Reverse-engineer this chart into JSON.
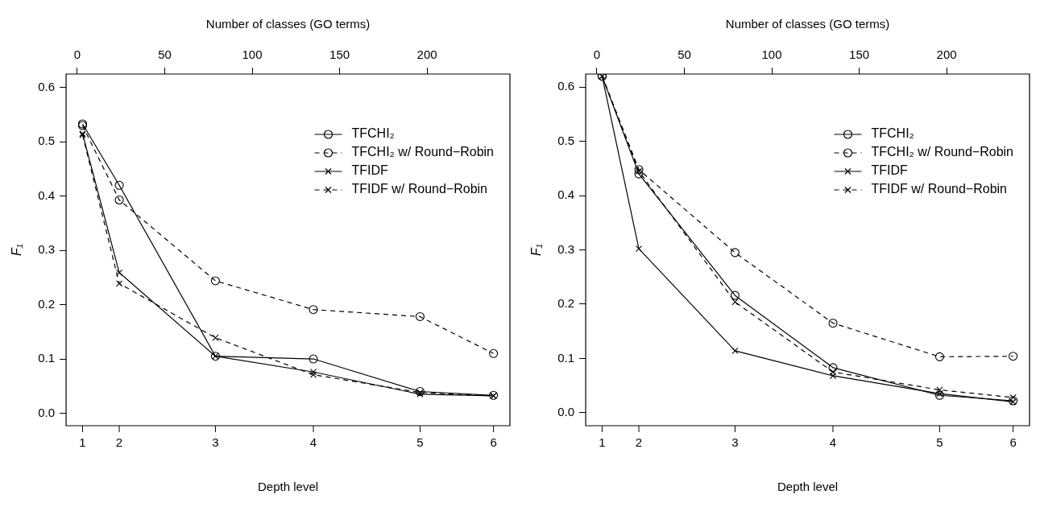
{
  "chart_data": [
    {
      "type": "line",
      "xlabel": "Number of classes (GO terms)",
      "x2label": "Depth level",
      "ylabel": "F₁",
      "legend": "top right",
      "x": [
        3,
        24,
        79,
        135,
        196,
        238
      ],
      "xlim": [
        -6.4,
        247.4
      ],
      "xticks": [
        0,
        50,
        100,
        150,
        200
      ],
      "annotations": [
        {
          "text": "1",
          "x": 3
        },
        {
          "text": "2",
          "x": 24
        },
        {
          "text": "3",
          "x": 79
        },
        {
          "text": "4",
          "x": 135
        },
        {
          "text": "5",
          "x": 196
        },
        {
          "text": "6",
          "x": 238
        }
      ],
      "ylim": [
        -0.023,
        0.625
      ],
      "yticks": [
        {
          "value": 0,
          "label": "0.0"
        },
        0.1,
        0.2,
        0.3,
        0.4,
        0.5,
        0.6
      ],
      "series": [
        {
          "name": "TFCHI₂",
          "color": "#000000",
          "marker": "circle",
          "line_style": "solid",
          "values": [
            0.533,
            0.42,
            0.105,
            0.1,
            0.04,
            0.033
          ]
        },
        {
          "name": "TFCHI₂ w/ Round−Robin",
          "color": "#000000",
          "marker": "circle",
          "line_style": "dashed",
          "values": [
            0.53,
            0.393,
            0.244,
            0.191,
            0.178,
            0.11
          ]
        },
        {
          "name": "TFIDF",
          "color": "#000000",
          "marker": "cross",
          "line_style": "solid",
          "values": [
            0.515,
            0.259,
            0.105,
            0.076,
            0.035,
            0.032
          ]
        },
        {
          "name": "TFIDF w/ Round−Robin",
          "color": "#000000",
          "marker": "cross",
          "line_style": "dashed",
          "values": [
            0.513,
            0.239,
            0.139,
            0.071,
            0.038,
            0.032
          ]
        }
      ]
    },
    {
      "type": "line",
      "xlabel": "Number of classes (GO terms)",
      "x2label": "Depth level",
      "ylabel": "F₁",
      "legend": "top right",
      "x": [
        3,
        24,
        79,
        135,
        196,
        238
      ],
      "xlim": [
        -6.4,
        247.4
      ],
      "xticks": [
        0,
        50,
        100,
        150,
        200
      ],
      "annotations": [
        {
          "text": "1",
          "x": 3
        },
        {
          "text": "2",
          "x": 24
        },
        {
          "text": "3",
          "x": 79
        },
        {
          "text": "4",
          "x": 135
        },
        {
          "text": "5",
          "x": 196
        },
        {
          "text": "6",
          "x": 238
        }
      ],
      "ylim": [
        -0.024,
        0.624
      ],
      "yticks": [
        {
          "value": 0,
          "label": "0.0"
        },
        0.1,
        0.2,
        0.3,
        0.4,
        0.5,
        0.6
      ],
      "series": [
        {
          "name": "TFCHI₂",
          "color": "#000000",
          "marker": "circle",
          "line_style": "solid",
          "values": [
            0.62,
            0.44,
            0.216,
            0.083,
            0.032,
            0.022
          ]
        },
        {
          "name": "TFCHI₂ w/ Round−Robin",
          "color": "#000000",
          "marker": "circle",
          "line_style": "dashed",
          "values": [
            0.62,
            0.448,
            0.295,
            0.165,
            0.103,
            0.104
          ]
        },
        {
          "name": "TFIDF",
          "color": "#000000",
          "marker": "cross",
          "line_style": "solid",
          "values": [
            0.62,
            0.302,
            0.114,
            0.068,
            0.035,
            0.02
          ]
        },
        {
          "name": "TFIDF w/ Round−Robin",
          "color": "#000000",
          "marker": "cross",
          "line_style": "dashed",
          "values": [
            0.62,
            0.445,
            0.204,
            0.075,
            0.042,
            0.028
          ]
        }
      ]
    }
  ]
}
